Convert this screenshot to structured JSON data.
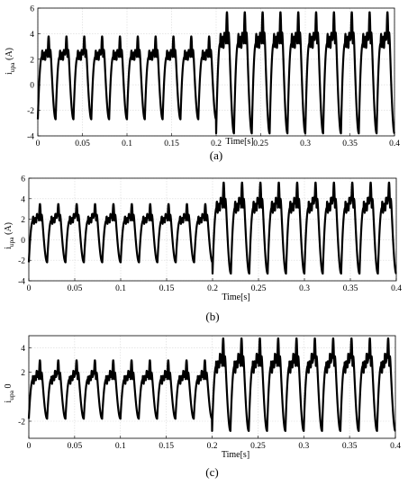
{
  "chart_data": [
    {
      "type": "line",
      "caption": "(a)",
      "xlabel": "Time[s]",
      "ylabel": "i_upa (A)",
      "ylabel_main": "i",
      "ylabel_sub": "upa",
      "ylabel_unit": "(A)",
      "xlim": [
        0,
        0.4
      ],
      "ylim": [
        -4,
        6
      ],
      "xticks": [
        0,
        0.05,
        0.1,
        0.15,
        0.2,
        0.25,
        0.3,
        0.35,
        0.4
      ],
      "yticks": [
        -4,
        -2,
        0,
        2,
        4,
        6
      ],
      "grid": true,
      "series": [
        {
          "period_s": 0.02,
          "segments": [
            {
              "x_range": [
                0,
                0.2
              ],
              "max": 3.8,
              "min": -2.7,
              "mean": 1.3
            },
            {
              "x_range": [
                0.2,
                0.4
              ],
              "max": 5.7,
              "min": -3.8,
              "mean": 1.9
            }
          ]
        }
      ]
    },
    {
      "type": "line",
      "caption": "(b)",
      "xlabel": "Time[s]",
      "ylabel": "i_upa (A)",
      "ylabel_main": "i",
      "ylabel_sub": "upa",
      "ylabel_unit": "(A)",
      "xlim": [
        0,
        0.4
      ],
      "ylim": [
        -4,
        6
      ],
      "xticks": [
        0,
        0.05,
        0.1,
        0.15,
        0.2,
        0.25,
        0.3,
        0.35,
        0.4
      ],
      "yticks": [
        -4,
        -2,
        0,
        2,
        4,
        6
      ],
      "grid": true,
      "series": [
        {
          "period_s": 0.02,
          "segments": [
            {
              "x_range": [
                0,
                0.2
              ],
              "max": 3.5,
              "min": -2.2,
              "mean": 1.0
            },
            {
              "x_range": [
                0.2,
                0.4
              ],
              "max": 5.6,
              "min": -3.3,
              "mean": 1.8
            }
          ]
        }
      ]
    },
    {
      "type": "line",
      "caption": "(c)",
      "xlabel": "Time[s]",
      "ylabel": "i_upa 0",
      "ylabel_main": "i",
      "ylabel_sub": "upa",
      "ylabel_unit": "0",
      "xlim": [
        0,
        0.4
      ],
      "ylim": [
        -3.4,
        5
      ],
      "xticks": [
        0,
        0.05,
        0.1,
        0.15,
        0.2,
        0.25,
        0.3,
        0.35,
        0.4
      ],
      "yticks": [
        -2,
        2,
        4
      ],
      "grid": true,
      "series": [
        {
          "period_s": 0.02,
          "segments": [
            {
              "x_range": [
                0,
                0.2
              ],
              "max": 3.0,
              "min": -1.8,
              "mean": 0.6
            },
            {
              "x_range": [
                0.2,
                0.4
              ],
              "max": 4.8,
              "min": -2.8,
              "mean": 1.3
            }
          ]
        }
      ]
    }
  ]
}
